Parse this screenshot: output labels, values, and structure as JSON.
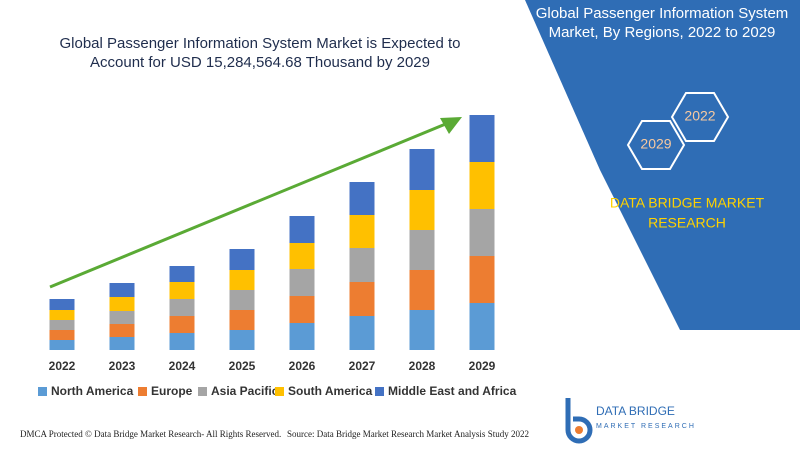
{
  "chart_data": {
    "type": "stacked-bar",
    "title": [
      "Global Passenger Information System Market is Expected to",
      "Account for USD 15,284,564.68 Thousand by 2029"
    ],
    "categories": [
      "2022",
      "2023",
      "2024",
      "2025",
      "2026",
      "2027",
      "2028",
      "2029"
    ],
    "series": [
      {
        "name": "North America",
        "color": "#5b9bd5",
        "values": [
          10,
          13,
          17,
          20,
          27,
          34,
          40,
          47
        ]
      },
      {
        "name": "Europe",
        "color": "#ed7d31",
        "values": [
          10,
          13,
          17,
          20,
          27,
          34,
          40,
          47
        ]
      },
      {
        "name": "Asia Pacific",
        "color": "#a5a5a5",
        "values": [
          10,
          13,
          17,
          20,
          27,
          34,
          40,
          47
        ]
      },
      {
        "name": "South America",
        "color": "#ffc000",
        "values": [
          10,
          14,
          17,
          20,
          26,
          33,
          40,
          47
        ]
      },
      {
        "name": "Middle East and Africa",
        "color": "#4472c4",
        "values": [
          11,
          14,
          16,
          21,
          27,
          33,
          41,
          47
        ]
      }
    ]
  },
  "panel": {
    "title": [
      "Global Passenger Information System",
      "Market, By Regions, 2022 to 2029"
    ],
    "years": [
      "2022",
      "2029"
    ],
    "brand": [
      "DATA BRIDGE MARKET",
      "RESEARCH"
    ]
  },
  "footer": {
    "left": "DMCA Protected © Data Bridge Market Research- All Rights Reserved.",
    "right": "Source: Data Bridge Market Research Market Analysis Study 2022"
  },
  "logo": {
    "name": "DATA BRIDGE",
    "tagline": "MARKET RESEARCH"
  }
}
